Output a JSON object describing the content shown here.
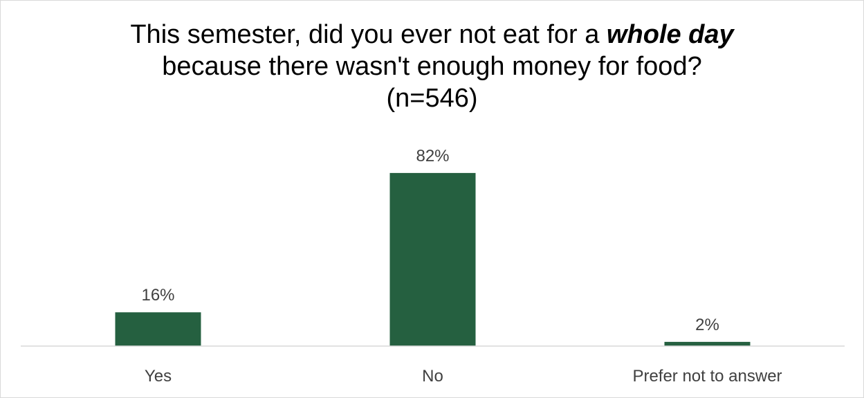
{
  "chart_data": {
    "type": "bar",
    "title": {
      "line1_prefix": "This semester, did you ever not eat for a",
      "line1_emphasis": "whole day",
      "line2": "because there wasn't enough money for food?",
      "line3": "(n=546)"
    },
    "categories": [
      "Yes",
      "No",
      "Prefer not to answer"
    ],
    "values": [
      16,
      82,
      2
    ],
    "data_labels": [
      "16%",
      "82%",
      "2%"
    ],
    "unit": "%",
    "ylim": [
      0,
      100
    ],
    "grid": false,
    "legend": "none",
    "bar_color": "#256040",
    "axis_color": "#d9d9d9"
  }
}
